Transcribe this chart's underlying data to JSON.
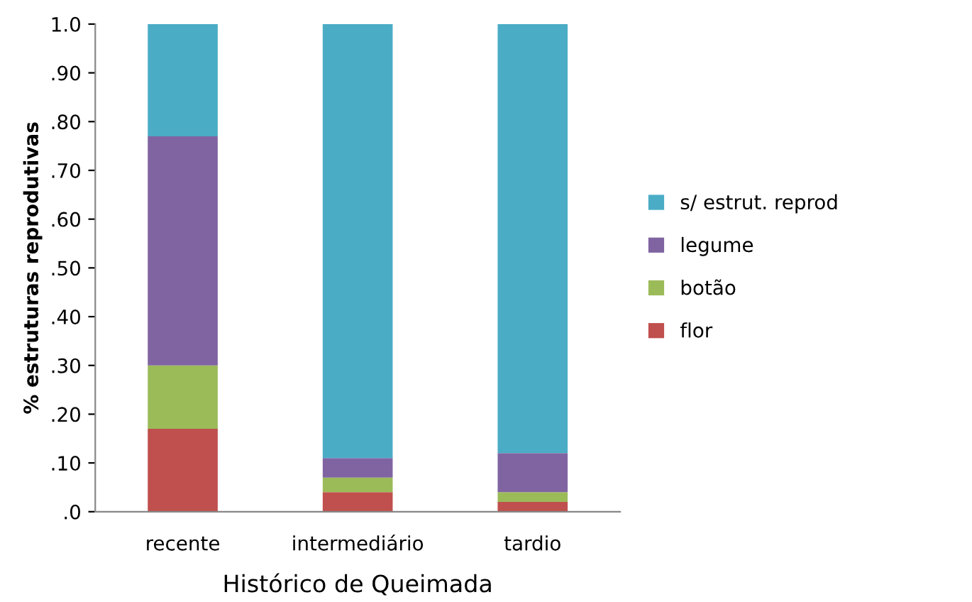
{
  "chart_data": {
    "type": "bar",
    "stacked": true,
    "xlabel": "Histórico de Queimada",
    "ylabel": "% estruturas reprodutivas",
    "categories": [
      "recente",
      "intermediário",
      "tardio"
    ],
    "series": [
      {
        "name": "flor",
        "color": "#c0504d",
        "values": [
          0.17,
          0.04,
          0.02
        ]
      },
      {
        "name": "botão",
        "color": "#9bbb59",
        "values": [
          0.13,
          0.03,
          0.02
        ]
      },
      {
        "name": "legume",
        "color": "#8064a2",
        "values": [
          0.47,
          0.04,
          0.08
        ]
      },
      {
        "name": "s/ estrut. reprod",
        "color": "#4bacc6",
        "values": [
          0.23,
          0.89,
          0.88
        ]
      }
    ],
    "ylim": [
      0,
      1
    ],
    "yticks": [
      {
        "value": 0,
        "label": ".0"
      },
      {
        "value": 0.1,
        "label": ".10"
      },
      {
        "value": 0.2,
        "label": ".20"
      },
      {
        "value": 0.3,
        "label": ".30"
      },
      {
        "value": 0.4,
        "label": ".40"
      },
      {
        "value": 0.5,
        "label": ".50"
      },
      {
        "value": 0.6,
        "label": ".60"
      },
      {
        "value": 0.7,
        "label": ".70"
      },
      {
        "value": 0.8,
        "label": ".80"
      },
      {
        "value": 0.9,
        "label": ".90"
      },
      {
        "value": 1,
        "label": "1.0"
      }
    ],
    "grid": false,
    "legend": "right"
  }
}
